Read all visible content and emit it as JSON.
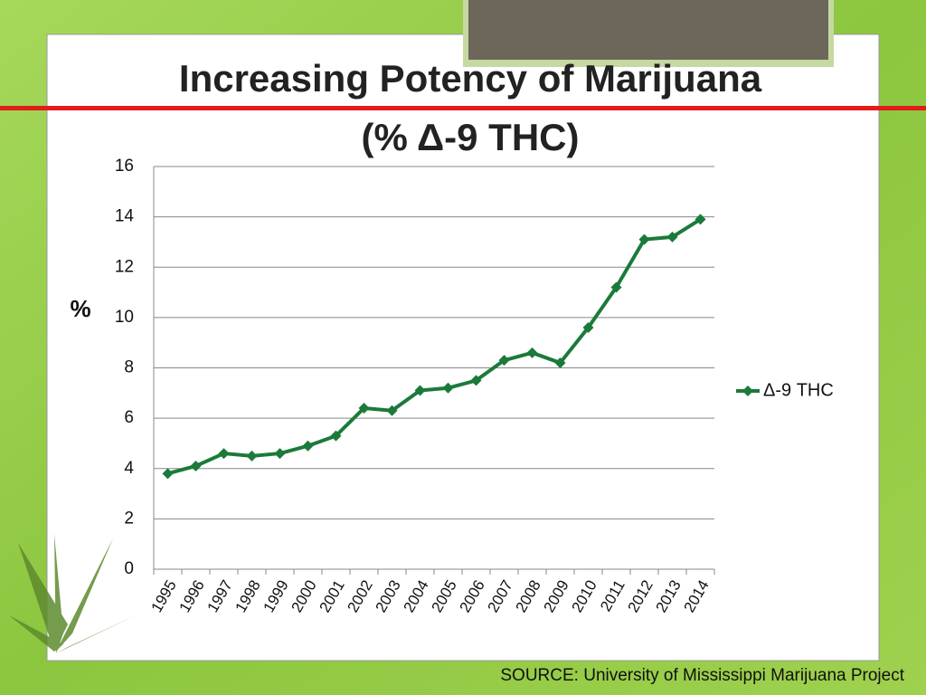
{
  "chart_data": {
    "type": "line",
    "title": "Increasing Potency of Marijuana",
    "subtitle": "(% Δ-9 THC)",
    "y_label": "%",
    "categories": [
      "1995",
      "1996",
      "1997",
      "1998",
      "1999",
      "2000",
      "2001",
      "2002",
      "2003",
      "2004",
      "2005",
      "2006",
      "2007",
      "2008",
      "2009",
      "2010",
      "2011",
      "2012",
      "2013",
      "2014"
    ],
    "series": [
      {
        "name": "Δ-9 THC",
        "color": "#1b7a3a",
        "values": [
          3.8,
          4.1,
          4.6,
          4.5,
          4.6,
          4.9,
          5.3,
          6.4,
          6.3,
          7.1,
          7.2,
          7.5,
          8.3,
          8.6,
          8.2,
          9.6,
          11.2,
          13.1,
          13.2,
          13.9
        ]
      }
    ],
    "ylim": [
      0,
      16
    ],
    "yticks": [
      0,
      2,
      4,
      6,
      8,
      10,
      12,
      14,
      16
    ],
    "grid": true,
    "legend": "right"
  },
  "footer": "SOURCE: University of Mississippi Marijuana Project"
}
